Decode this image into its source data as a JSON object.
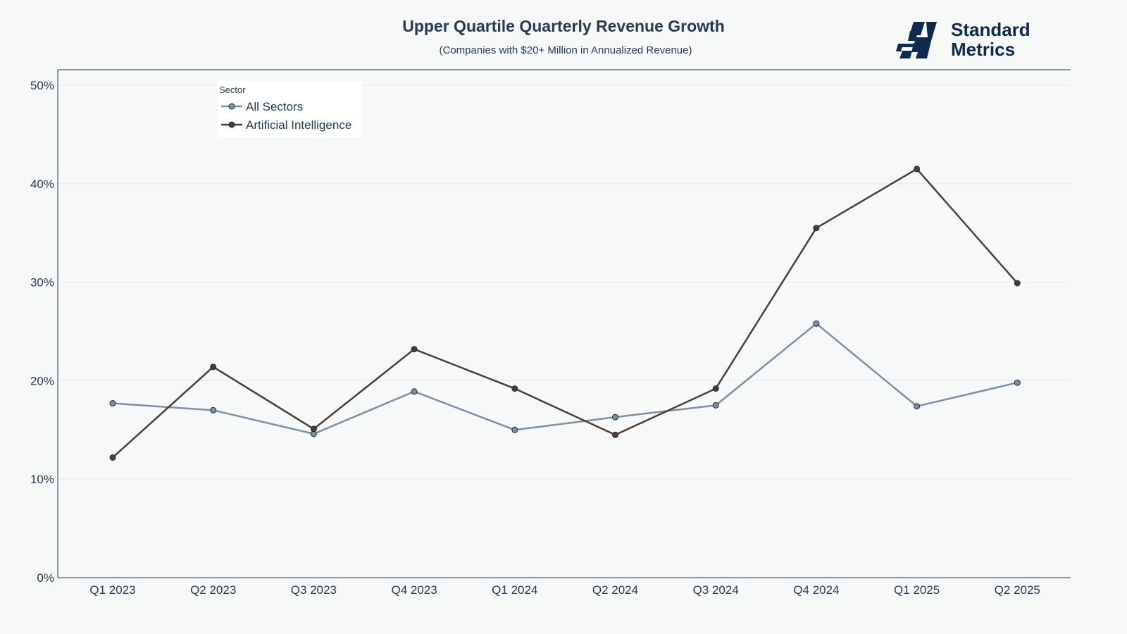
{
  "brand": {
    "line1": "Standard",
    "line2": "Metrics",
    "color": "#0f2a4d"
  },
  "chart_data": {
    "type": "line",
    "title": "Upper Quartile Quarterly Revenue Growth",
    "subtitle": "(Companies with $20+ Million in Annualized Revenue)",
    "xlabel": "",
    "ylabel": "",
    "ylim": [
      0,
      50
    ],
    "yticks": [
      0,
      10,
      20,
      30,
      40,
      50
    ],
    "ytick_format": "percent",
    "grid": true,
    "legend_position": "top-left",
    "legend_title": "Sector",
    "categories": [
      "Q1 2023",
      "Q2 2023",
      "Q3 2023",
      "Q4 2023",
      "Q1 2024",
      "Q2 2024",
      "Q3 2024",
      "Q4 2024",
      "Q1 2025",
      "Q2 2025"
    ],
    "series": [
      {
        "name": "All Sectors",
        "color": "#7b8fa8",
        "values": [
          17.7,
          17.0,
          14.6,
          18.9,
          15.0,
          16.3,
          17.5,
          25.8,
          17.4,
          19.8
        ]
      },
      {
        "name": "Artificial Intelligence",
        "color": "#4a3f38",
        "values": [
          12.2,
          21.4,
          15.1,
          23.2,
          19.2,
          14.5,
          19.2,
          35.5,
          41.5,
          29.9
        ]
      }
    ]
  }
}
